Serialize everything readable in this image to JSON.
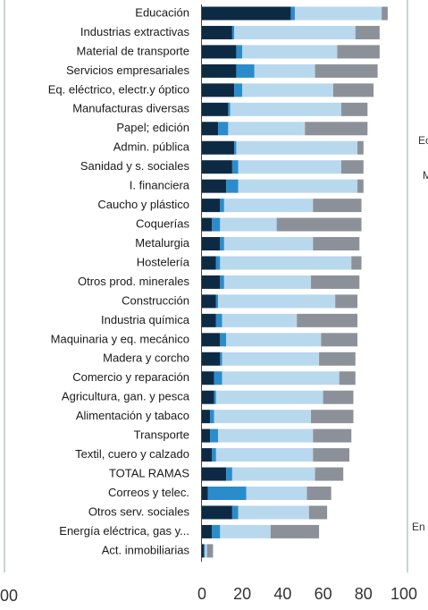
{
  "chart_data": {
    "type": "stacked-barh",
    "categories": [
      "Educación",
      "Industrias extractivas",
      "Material de transporte",
      "Servicios empresariales",
      "Eq. eléctrico, electr.y óptico",
      "Manufacturas diversas",
      "Papel; edición",
      "Admin. pública",
      "Sanidad y s. sociales",
      "I. financiera",
      "Caucho y plástico",
      "Coquerías",
      "Metalurgia",
      "Hostelería",
      "Otros prod. minerales",
      "Construcción",
      "Industria química",
      "Maquinaria y eq. mecánico",
      "Madera y corcho",
      "Comercio y reparación ",
      "Agricultura, gan. y pesca",
      "Alimentación y tabaco",
      "Transporte",
      "Textil, cuero y calzado",
      "TOTAL RAMAS",
      "Correos y telec.",
      "Otros serv. sociales",
      "Energía eléctrica, gas y...",
      "Act. inmobiliarias"
    ],
    "series": [
      {
        "color": "#0d2a45",
        "values": [
          44,
          15,
          17,
          17,
          16,
          13,
          8,
          16,
          15,
          12,
          9,
          5,
          9,
          7,
          9,
          7,
          7,
          9,
          9,
          6,
          6,
          4,
          4,
          5,
          12,
          3,
          15,
          5,
          1
        ]
      },
      {
        "color": "#2b8ccc",
        "values": [
          2,
          1,
          3,
          9,
          4,
          1,
          5,
          1,
          3,
          6,
          2,
          4,
          2,
          2,
          2,
          1,
          3,
          3,
          1,
          4,
          1,
          2,
          4,
          2,
          3,
          19,
          3,
          4,
          0.5
        ]
      },
      {
        "color": "#b8d8ee",
        "values": [
          43,
          60,
          47,
          30,
          45,
          55,
          38,
          60,
          51,
          59,
          44,
          28,
          44,
          65,
          43,
          58,
          37,
          47,
          48,
          58,
          53,
          48,
          47,
          48,
          41,
          30,
          35,
          25,
          1
        ]
      },
      {
        "color": "#8c9199",
        "values": [
          3,
          12,
          21,
          31,
          20,
          13,
          31,
          3,
          11,
          3,
          24,
          42,
          23,
          5,
          24,
          11,
          30,
          18,
          18,
          8,
          15,
          21,
          19,
          18,
          14,
          12,
          9,
          24,
          3
        ]
      }
    ],
    "xlim": [
      0,
      100
    ],
    "xticks": [
      0,
      20,
      40,
      60,
      80,
      100
    ],
    "fragments": [
      "00",
      "Ec",
      "M",
      "En"
    ]
  }
}
